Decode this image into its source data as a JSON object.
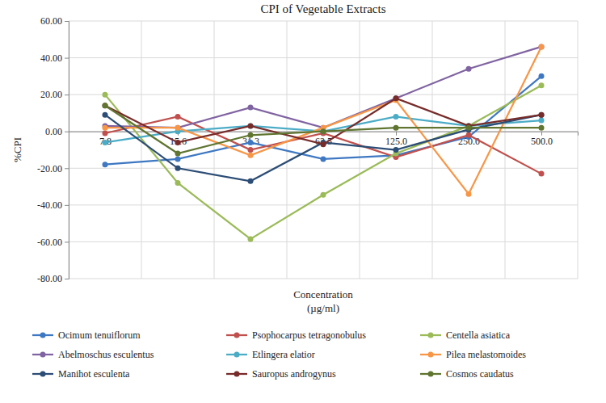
{
  "chart_data": {
    "type": "line",
    "title": "CPI of Vegetable Extracts",
    "x_label": "Concentration (µg/ml)",
    "y_label": "%CPI",
    "categories": [
      "7.8",
      "15.6",
      "31.3",
      "62.5",
      "125.0",
      "250.0",
      "500.0"
    ],
    "ylim": [
      -80,
      60
    ],
    "yticks": [
      {
        "value": -80,
        "label": "-80.00"
      },
      {
        "value": -60,
        "label": "-60.00"
      },
      {
        "value": -40,
        "label": "-40.00"
      },
      {
        "value": -20,
        "label": "-20.00"
      },
      {
        "value": 0,
        "label": "0.00"
      },
      {
        "value": 20,
        "label": "20.00"
      },
      {
        "value": 40,
        "label": "40.00"
      },
      {
        "value": 60,
        "label": "60.00"
      }
    ],
    "grid": true,
    "legend": "bottom",
    "marker": "circle",
    "series": [
      {
        "name": "Ocimum tenuiflorum",
        "color": "#3e78c2",
        "values": [
          -18,
          -15,
          -6,
          -15,
          -13,
          -3,
          30
        ]
      },
      {
        "name": "Psophocarpus tetragonobulus",
        "color": "#c0504d",
        "values": [
          -1,
          8,
          -10,
          -1,
          -14,
          -2,
          -23
        ]
      },
      {
        "name": "Centella asiatica",
        "color": "#9bbb59",
        "values": [
          20,
          -28,
          -58.5,
          -34.5,
          -12,
          3,
          25
        ]
      },
      {
        "name": "Abelmoschus esculentus",
        "color": "#8064a2",
        "values": [
          3,
          2,
          13,
          2,
          18,
          34,
          46
        ]
      },
      {
        "name": "Etlingera elatior",
        "color": "#4bacc6",
        "values": [
          -6,
          0,
          3,
          0,
          8,
          3,
          6
        ]
      },
      {
        "name": "Pilea melastomoides",
        "color": "#f79646",
        "values": [
          2,
          2,
          -13,
          2,
          17,
          -34,
          46
        ]
      },
      {
        "name": "Manihot esculenta",
        "color": "#2c4d75",
        "values": [
          9,
          -20,
          -27,
          -6,
          -10,
          1,
          9
        ]
      },
      {
        "name": "Sauropus androgynus",
        "color": "#772c2a",
        "values": [
          14,
          -6,
          3,
          -7,
          18,
          3,
          9
        ]
      },
      {
        "name": "Cosmos caudatus",
        "color": "#5f7530",
        "values": [
          14,
          -12,
          -2,
          0,
          2,
          2,
          2
        ]
      }
    ]
  }
}
